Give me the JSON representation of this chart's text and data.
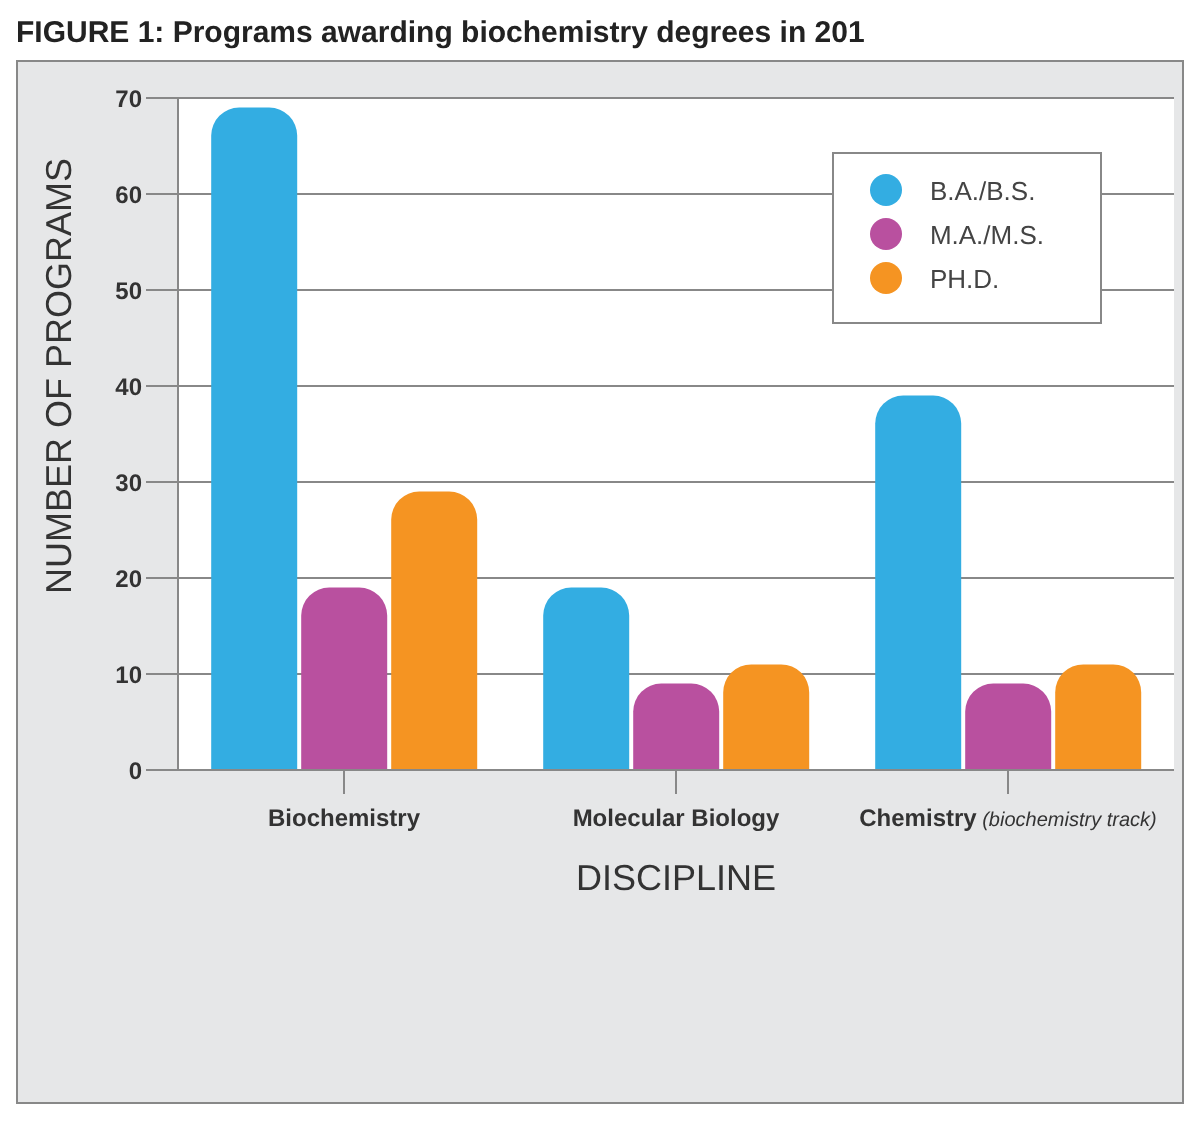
{
  "chart_data": {
    "type": "bar",
    "title": "FIGURE 1: Programs awarding biochemistry degrees in 201",
    "xlabel": "DISCIPLINE",
    "ylabel": "NUMBER OF PROGRAMS",
    "categories": [
      "Biochemistry",
      "Molecular Biology",
      "Chemistry (biochemistry track)"
    ],
    "series": [
      {
        "name": "B.A./B.S.",
        "color": "#33ade2",
        "values": [
          69,
          19,
          39
        ]
      },
      {
        "name": "M.A./M.S.",
        "color": "#b9509f",
        "values": [
          19,
          9,
          9
        ]
      },
      {
        "name": "PH.D.",
        "color": "#f59422",
        "values": [
          29,
          11,
          11
        ]
      }
    ],
    "ylim": [
      0,
      70
    ],
    "yticks": [
      0,
      10,
      20,
      30,
      40,
      50,
      60,
      70
    ],
    "grid": "y",
    "legend": "top right"
  }
}
